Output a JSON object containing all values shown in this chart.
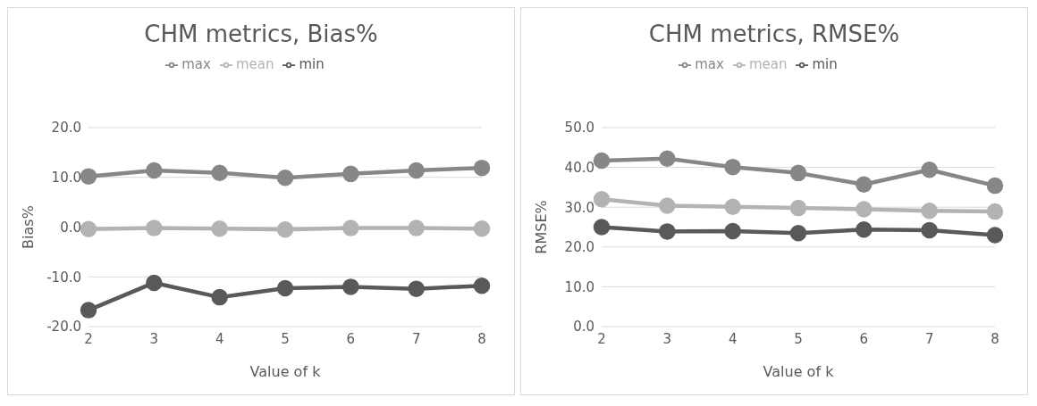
{
  "chart_data": [
    {
      "type": "line",
      "title": "CHM metrics, Bias%",
      "xlabel": "Value of k",
      "ylabel": "Bias%",
      "categories": [
        "2",
        "3",
        "4",
        "5",
        "6",
        "7",
        "8"
      ],
      "series": [
        {
          "name": "min",
          "color": "#595959",
          "values": [
            -16.7,
            -11.2,
            -14.1,
            -12.3,
            -12.0,
            -12.4,
            -11.8
          ]
        },
        {
          "name": "mean",
          "color": "#b3b3b3",
          "values": [
            -0.4,
            -0.2,
            -0.3,
            -0.5,
            -0.2,
            -0.2,
            -0.3
          ]
        },
        {
          "name": "max",
          "color": "#878787",
          "values": [
            10.2,
            11.4,
            10.9,
            9.9,
            10.7,
            11.4,
            11.9
          ]
        }
      ],
      "ylim": [
        -20,
        20
      ],
      "yticks": [
        {
          "value": -20,
          "label": "-20.0"
        },
        {
          "value": -10,
          "label": "-10.0"
        },
        {
          "value": 0,
          "label": "0.0"
        },
        {
          "value": 10,
          "label": "10.0"
        },
        {
          "value": 20,
          "label": "20.0"
        }
      ],
      "grid": "y",
      "legend": "top",
      "marker": "circle",
      "line_style": "solid"
    },
    {
      "type": "line",
      "title": "CHM metrics, RMSE%",
      "xlabel": "Value of k",
      "ylabel": "RMSE%",
      "categories": [
        "2",
        "3",
        "4",
        "5",
        "6",
        "7",
        "8"
      ],
      "series": [
        {
          "name": "min",
          "color": "#595959",
          "values": [
            25.0,
            23.9,
            24.0,
            23.5,
            24.4,
            24.2,
            23.0
          ]
        },
        {
          "name": "mean",
          "color": "#b3b3b3",
          "values": [
            32.0,
            30.4,
            30.1,
            29.8,
            29.5,
            29.1,
            28.9
          ]
        },
        {
          "name": "max",
          "color": "#878787",
          "values": [
            41.7,
            42.2,
            40.1,
            38.6,
            35.7,
            39.4,
            35.4
          ]
        }
      ],
      "ylim": [
        0,
        50
      ],
      "yticks": [
        {
          "value": 0,
          "label": "0.0"
        },
        {
          "value": 10,
          "label": "10.0"
        },
        {
          "value": 20,
          "label": "20.0"
        },
        {
          "value": 30,
          "label": "30.0"
        },
        {
          "value": 40,
          "label": "40.0"
        },
        {
          "value": 50,
          "label": "50.0"
        }
      ],
      "grid": "y",
      "legend": "top",
      "marker": "circle",
      "line_style": "solid"
    }
  ]
}
